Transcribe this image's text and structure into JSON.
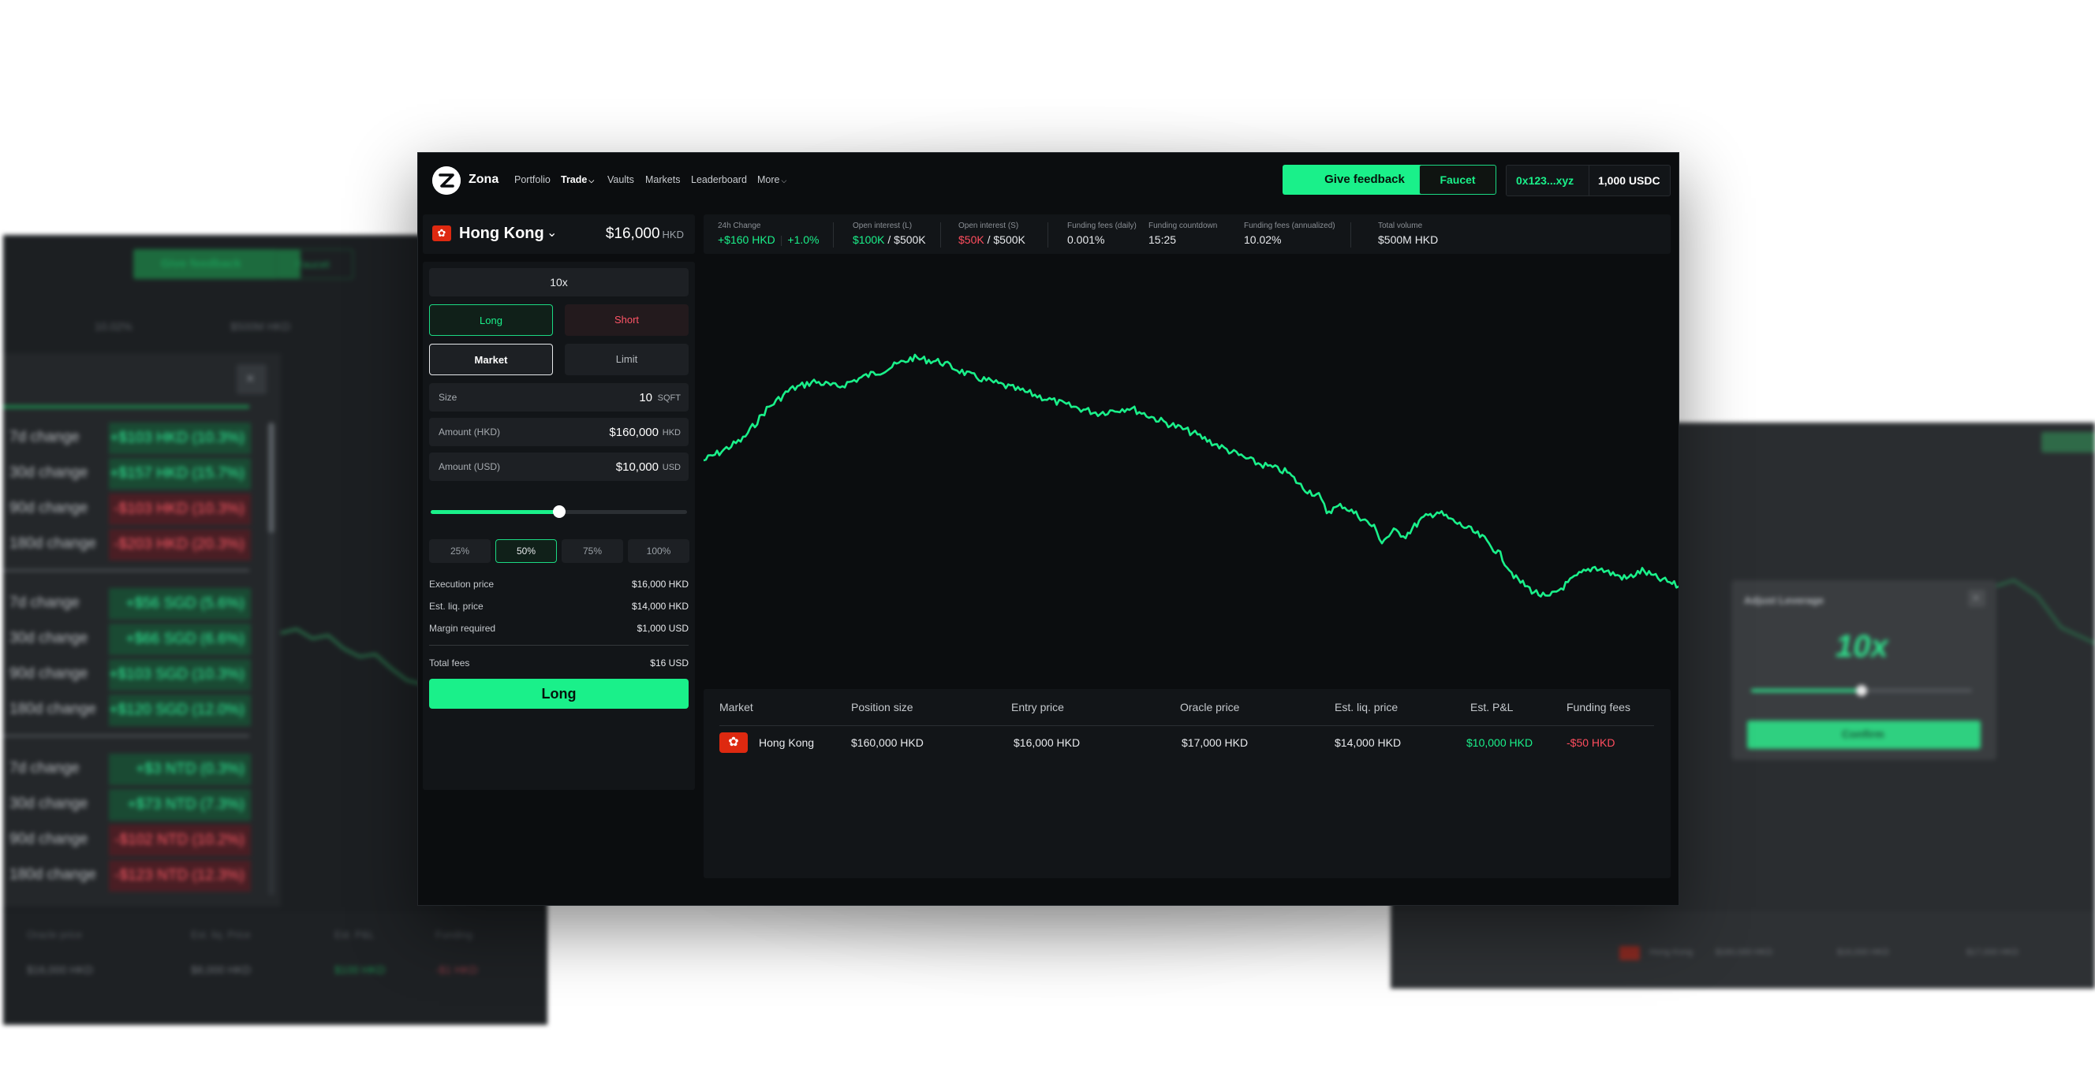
{
  "app": {
    "brand": "Zona"
  },
  "nav": {
    "items": [
      "Portfolio",
      "Trade",
      "Vaults",
      "Markets",
      "Leaderboard",
      "More"
    ],
    "feedback_label": "Give feedback",
    "faucet_label": "Faucet",
    "wallet_address": "0x123...xyz",
    "wallet_balance": "1,000 USDC"
  },
  "market": {
    "flag_glyph": "✿",
    "name": "Hong Kong",
    "price": "$16,000",
    "currency": "HKD"
  },
  "stats": {
    "change_label": "24h Change",
    "change_value": "+$160 HKD",
    "change_pct": "+1.0%",
    "oi_long_label": "Open interest (L)",
    "oi_long_value": "$100K",
    "oi_long_total": " / $500K",
    "oi_short_label": "Open interest (S)",
    "oi_short_value": "$50K",
    "oi_short_total": " / $500K",
    "funding_daily_label": "Funding fees (daily)",
    "funding_daily_value": "0.001%",
    "countdown_label": "Funding countdown",
    "countdown_value": "15:25",
    "funding_annual_label": "Funding fees (annualized)",
    "funding_annual_value": "10.02%",
    "volume_label": "Total volume",
    "volume_value": "$500M HKD"
  },
  "order": {
    "leverage": "10x",
    "long_label": "Long",
    "short_label": "Short",
    "market_label": "Market",
    "limit_label": "Limit",
    "size_label": "Size",
    "size_value": "10",
    "size_unit": "SQFT",
    "amount_hkd_label": "Amount (HKD)",
    "amount_hkd_value": "$160,000",
    "amount_hkd_unit": "HKD",
    "amount_usd_label": "Amount (USD)",
    "amount_usd_value": "$10,000",
    "amount_usd_unit": "USD",
    "slider_fraction": 0.5,
    "percent_options": [
      "25%",
      "50%",
      "75%",
      "100%"
    ],
    "selected_percent": "50%",
    "exec_label": "Execution price",
    "exec_value": "$16,000 HKD",
    "liq_label": "Est. liq. price",
    "liq_value": "$14,000 HKD",
    "margin_label": "Margin required",
    "margin_value": "$1,000 USD",
    "fees_label": "Total fees",
    "fees_value": "$16 USD",
    "submit_label": "Long"
  },
  "positions": {
    "headers": [
      "Market",
      "Position size",
      "Entry price",
      "Oracle price",
      "Est. liq. price",
      "Est. P&L",
      "Funding fees"
    ],
    "rows": [
      {
        "market": "Hong Kong",
        "size": "$160,000 HKD",
        "entry": "$16,000 HKD",
        "oracle": "$17,000 HKD",
        "liq": "$14,000 HKD",
        "pnl": "$10,000 HKD",
        "funding": "-$50 HKD"
      }
    ]
  },
  "colors": {
    "accent": "#1af08a",
    "negative": "#ff4d5e",
    "background": "#0b0d0f",
    "panel": "#121518"
  },
  "background_left": {
    "feedback_label": "Give feedback",
    "faucet_label": "Faucet",
    "stats": [
      "10.02%",
      "$500M HKD"
    ],
    "close_glyph": "×",
    "groups": [
      [
        {
          "label": "7d change",
          "value": "+$103 HKD (10.3%)",
          "sign": "g"
        },
        {
          "label": "30d change",
          "value": "+$157 HKD (15.7%)",
          "sign": "g"
        },
        {
          "label": "90d change",
          "value": "-$103 HKD (10.3%)",
          "sign": "r"
        },
        {
          "label": "180d change",
          "value": "-$203 HKD (20.3%)",
          "sign": "r"
        }
      ],
      [
        {
          "label": "7d change",
          "value": "+$56 SGD (5.6%)",
          "sign": "g"
        },
        {
          "label": "30d change",
          "value": "+$66 SGD (6.6%)",
          "sign": "g"
        },
        {
          "label": "90d change",
          "value": "+$103 SGD (10.3%)",
          "sign": "g"
        },
        {
          "label": "180d change",
          "value": "+$120 SGD (12.0%)",
          "sign": "g"
        }
      ],
      [
        {
          "label": "7d change",
          "value": "+$3 NTD (0.3%)",
          "sign": "g"
        },
        {
          "label": "30d change",
          "value": "+$73 NTD (7.3%)",
          "sign": "g"
        },
        {
          "label": "90d change",
          "value": "-$102 NTD (10.2%)",
          "sign": "r"
        },
        {
          "label": "180d change",
          "value": "-$123 NTD (12.3%)",
          "sign": "r"
        }
      ]
    ],
    "table_headers": [
      "Oracle price",
      "Est. liq. Price",
      "Est. P&L",
      "Funding"
    ],
    "table_row": [
      "$16,000 HKD",
      "$8,000 HKD",
      "$100 HKD",
      "-$1 HKD"
    ]
  },
  "background_right": {
    "modal_title": "Adjust Leverage",
    "modal_value": "10x",
    "modal_close": "×",
    "confirm_label": "Confirm",
    "slider_fraction": 0.5,
    "table_row": [
      "Hong Kong",
      "$160,000 HKD",
      "$16,000 HKD",
      "$17,000 HKD"
    ]
  }
}
